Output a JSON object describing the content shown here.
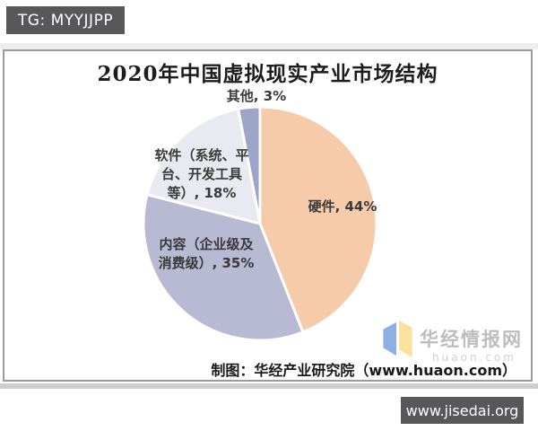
{
  "watermarks": {
    "tg_badge": "TG: MYYJJPP",
    "jisedai_badge": "www.jisedai.org",
    "huajing": {
      "name": "华经情报网",
      "url": "huaon.com"
    }
  },
  "chart_data": {
    "type": "pie",
    "title": "2020年中国虚拟现实产业市场结构",
    "unit": "%",
    "start_angle_deg": 0,
    "direction": "clockwise",
    "legend": "none",
    "segments": [
      {
        "label": "硬件",
        "value": 44,
        "display": "硬件, 44%",
        "color": "#f6cbaa"
      },
      {
        "label": "内容（企业级及消费级）",
        "value": 35,
        "display": "内容（企业级及\n消费级）, 35%",
        "color": "#b7bad2"
      },
      {
        "label": "软件（系统、平台、开发工具等）",
        "value": 18,
        "display": "软件（系统、平\n台、开发工具\n等）, 18%",
        "color": "#e8e9f1"
      },
      {
        "label": "其他",
        "value": 3,
        "display": "其他, 3%",
        "color": "#9da5c8"
      }
    ],
    "source_note": "制图：华经产业研究院（www.huaon.com）",
    "slice_border_color": "#ffffff"
  }
}
